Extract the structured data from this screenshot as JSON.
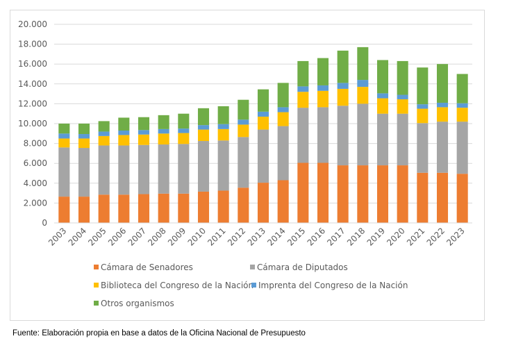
{
  "chart_data": {
    "type": "stacked-bar",
    "categories": [
      "2003",
      "2004",
      "2005",
      "2006",
      "2007",
      "2008",
      "2009",
      "2010",
      "2011",
      "2012",
      "2013",
      "2014",
      "2015",
      "2016",
      "2017",
      "2018",
      "2019",
      "2020",
      "2021",
      "2022",
      "2023"
    ],
    "series": [
      {
        "name": "Cámara de Senadores",
        "color": "#ED7D31",
        "values": [
          2650,
          2650,
          2850,
          2850,
          2900,
          2950,
          2950,
          3150,
          3250,
          3550,
          4050,
          4300,
          6050,
          6050,
          5800,
          5800,
          5800,
          5800,
          5050,
          5050,
          4950
        ]
      },
      {
        "name": "Cámara de Diputados",
        "color": "#A5A5A5",
        "values": [
          4950,
          4900,
          4950,
          4950,
          4950,
          4950,
          5000,
          5100,
          5050,
          5100,
          5350,
          5450,
          5550,
          5600,
          6000,
          6200,
          5200,
          5200,
          5000,
          5150,
          5250
        ]
      },
      {
        "name": "Biblioteca del Congreso de la Nación",
        "color": "#FFC000",
        "values": [
          900,
          950,
          950,
          1050,
          1050,
          1100,
          1100,
          1150,
          1150,
          1250,
          1300,
          1400,
          1600,
          1650,
          1700,
          1700,
          1550,
          1450,
          1450,
          1450,
          1400
        ]
      },
      {
        "name": "Imprenta del Congreso de la Nación",
        "color": "#5B9BD5",
        "values": [
          500,
          450,
          450,
          450,
          450,
          450,
          450,
          450,
          500,
          500,
          500,
          500,
          550,
          550,
          600,
          700,
          500,
          450,
          450,
          450,
          450
        ]
      },
      {
        "name": "Otros organismos",
        "color": "#70AD47",
        "values": [
          1000,
          1050,
          1050,
          1300,
          1300,
          1400,
          1500,
          1700,
          1800,
          2000,
          2250,
          2450,
          2550,
          2750,
          3250,
          3300,
          3350,
          3400,
          3700,
          3900,
          2950
        ]
      }
    ],
    "ylim": [
      0,
      20000
    ],
    "yticks": [
      0,
      {
        "value": 2000,
        "label": "2.000"
      },
      {
        "value": 4000,
        "label": "4.000"
      },
      {
        "value": 6000,
        "label": "6.000"
      },
      {
        "value": 8000,
        "label": "8.000"
      },
      {
        "value": 10000,
        "label": "10.000"
      },
      {
        "value": 12000,
        "label": "12.000"
      },
      {
        "value": 14000,
        "label": "14.000"
      },
      {
        "value": 16000,
        "label": "16.000"
      },
      {
        "value": 18000,
        "label": "18.000"
      },
      {
        "value": 20000,
        "label": "20.000"
      }
    ],
    "grid": true,
    "legend": "bottom",
    "footnote": "Fuente: Elaboración propia en base a datos de la Oficina Nacional de Presupuesto"
  }
}
